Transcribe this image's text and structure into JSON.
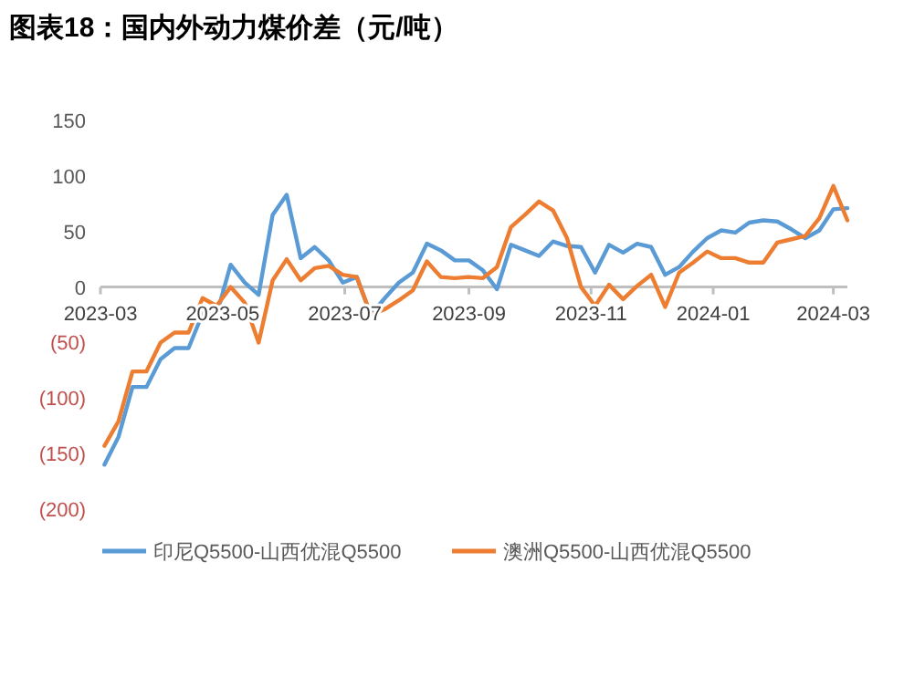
{
  "chart_data": {
    "type": "line",
    "title": "图表18：国内外动力煤价差（元/吨）",
    "x": [
      "2023-03-03",
      "2023-03-10",
      "2023-03-17",
      "2023-03-24",
      "2023-03-31",
      "2023-04-07",
      "2023-04-14",
      "2023-04-21",
      "2023-04-28",
      "2023-05-05",
      "2023-05-12",
      "2023-05-19",
      "2023-05-26",
      "2023-06-02",
      "2023-06-09",
      "2023-06-16",
      "2023-06-23",
      "2023-06-30",
      "2023-07-07",
      "2023-07-14",
      "2023-07-21",
      "2023-07-28",
      "2023-08-04",
      "2023-08-11",
      "2023-08-18",
      "2023-08-25",
      "2023-09-01",
      "2023-09-08",
      "2023-09-15",
      "2023-09-22",
      "2023-09-29",
      "2023-10-06",
      "2023-10-13",
      "2023-10-20",
      "2023-10-27",
      "2023-11-03",
      "2023-11-10",
      "2023-11-17",
      "2023-11-24",
      "2023-12-01",
      "2023-12-08",
      "2023-12-15",
      "2023-12-22",
      "2023-12-29",
      "2024-01-05",
      "2024-01-12",
      "2024-01-19",
      "2024-01-26",
      "2024-02-02",
      "2024-02-09",
      "2024-02-16",
      "2024-02-23",
      "2024-03-01",
      "2024-03-08"
    ],
    "series": [
      {
        "name": "印尼Q5500-山西优混Q5500",
        "color": "#5b9bd5",
        "values": [
          -160,
          -135,
          -90,
          -90,
          -65,
          -55,
          -55,
          -24,
          -25,
          20,
          4,
          -7,
          65,
          83,
          26,
          36,
          24,
          4,
          9,
          -25,
          -10,
          4,
          13,
          39,
          33,
          24,
          24,
          15,
          -2,
          38,
          33,
          28,
          41,
          37,
          36,
          13,
          38,
          31,
          39,
          36,
          11,
          18,
          32,
          44,
          51,
          49,
          58,
          60,
          59,
          52,
          44,
          51,
          70,
          71
        ]
      },
      {
        "name": "澳洲Q5500-山西优混Q5500",
        "color": "#ed7d31",
        "values": [
          -143,
          -121,
          -76,
          -76,
          -50,
          -41,
          -41,
          -10,
          -17,
          0,
          -14,
          -50,
          6,
          25,
          6,
          17,
          19,
          11,
          9,
          -25,
          -20,
          -12,
          -3,
          23,
          9,
          8,
          9,
          8,
          18,
          54,
          65,
          77,
          69,
          44,
          0,
          -17,
          2,
          -11,
          1,
          11,
          -18,
          13,
          22,
          32,
          26,
          26,
          22,
          22,
          40,
          43,
          46,
          62,
          91,
          60
        ]
      }
    ],
    "xlim": [
      "2023-03-01",
      "2024-03-08"
    ],
    "xticks": [
      {
        "value": "2023-03-01",
        "label": "2023-03"
      },
      {
        "value": "2023-05-01",
        "label": "2023-05"
      },
      {
        "value": "2023-07-01",
        "label": "2023-07"
      },
      {
        "value": "2023-09-01",
        "label": "2023-09"
      },
      {
        "value": "2023-11-01",
        "label": "2023-11"
      },
      {
        "value": "2024-01-01",
        "label": "2024-01"
      },
      {
        "value": "2024-03-01",
        "label": "2024-03"
      }
    ],
    "ylim": [
      -200,
      150
    ],
    "yticks": [
      {
        "value": -200,
        "label": "(200)"
      },
      {
        "value": -150,
        "label": "(150)"
      },
      {
        "value": -100,
        "label": "(100)"
      },
      {
        "value": -50,
        "label": "(50)"
      },
      0,
      50,
      100,
      150
    ],
    "grid": false,
    "legend": "bottom",
    "marker": "none",
    "line_style": "solid"
  }
}
